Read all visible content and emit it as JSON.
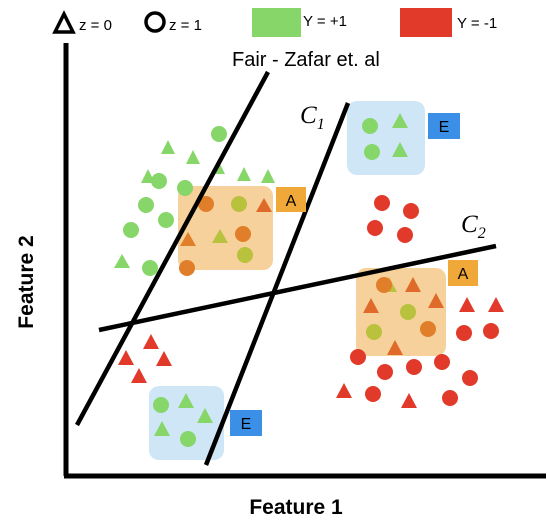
{
  "legend": {
    "z0": "z = 0",
    "z1": "z = 1",
    "ypos": "Y = +1",
    "yneg": "Y = -1"
  },
  "colors": {
    "green": "#86d66a",
    "red": "#e23a2a",
    "orange_box": "#f6c98a",
    "blue_box": "#cfe6f7",
    "tag_orange": "#f0a838",
    "tag_blue": "#3c8fe6"
  },
  "labels": {
    "fair": "Fair - Zafar et. al",
    "c1_main": "C",
    "c1_sub": "1",
    "c2_main": "C",
    "c2_sub": "2",
    "tag_a": "A",
    "tag_e": "E"
  },
  "axes": {
    "x": "Feature 1",
    "y": "Feature 2"
  }
}
